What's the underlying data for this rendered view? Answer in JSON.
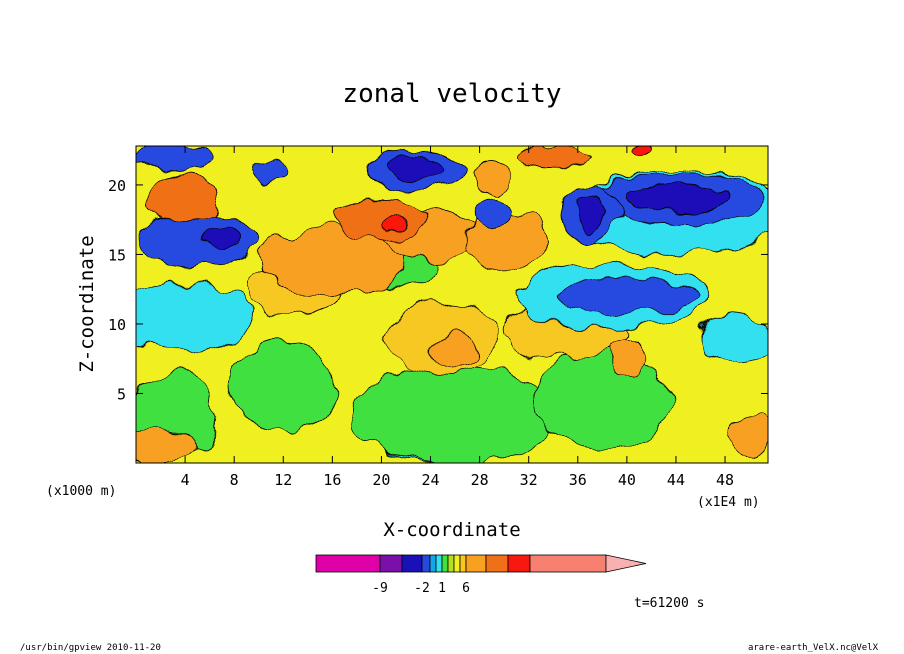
{
  "chart_data": {
    "type": "heatmap",
    "title": "zonal velocity",
    "xlabel": "X-coordinate",
    "ylabel": "Z-coordinate",
    "x_unit_label": "(x1E4 m)",
    "y_unit_label": "(x1000 m)",
    "xlim": [
      0,
      51.5
    ],
    "ylim": [
      0,
      22.8
    ],
    "x_ticks": [
      4,
      8,
      12,
      16,
      20,
      24,
      28,
      32,
      36,
      40,
      44,
      48
    ],
    "y_ticks": [
      5,
      10,
      15,
      20
    ],
    "grid": false,
    "colorbar": {
      "tick_labels": [
        "-9",
        "-2",
        "1",
        "6"
      ],
      "tick_values": [
        -9,
        -2,
        1,
        6
      ],
      "colors": [
        "#e000a8",
        "#7a10a8",
        "#1a10b8",
        "#2848e0",
        "#10a8e8",
        "#30e0f0",
        "#40e040",
        "#b0e020",
        "#f0f020",
        "#f8c820",
        "#f8a020",
        "#f07018",
        "#f81810",
        "#f88070",
        "#f8b0b0"
      ]
    },
    "time_label": "t=61200 s",
    "regions": [
      {
        "level": "cyan",
        "x": 25,
        "z": 1.8,
        "rx": 5.5,
        "rz": 1.8
      },
      {
        "level": "cyan",
        "x": 10,
        "z": 4.8,
        "rx": 2.2,
        "rz": 1.3
      },
      {
        "level": "green",
        "x": 26,
        "z": 3.5,
        "rx": 8.5,
        "rz": 3.5
      },
      {
        "level": "green",
        "x": 12,
        "z": 5.5,
        "rx": 4.5,
        "rz": 3.2
      },
      {
        "level": "green",
        "x": 3,
        "z": 3.5,
        "rx": 3.5,
        "rz": 3.0
      },
      {
        "level": "green",
        "x": 38,
        "z": 4.5,
        "rx": 5.5,
        "rz": 3.5
      },
      {
        "level": "green",
        "x": 22,
        "z": 14.5,
        "rx": 2.5,
        "rz": 1.8
      },
      {
        "level": "gold",
        "x": 25,
        "z": 9,
        "rx": 4.5,
        "rz": 2.5
      },
      {
        "level": "orange",
        "x": 26,
        "z": 8.2,
        "rx": 2.0,
        "rz": 1.2
      },
      {
        "level": "gold",
        "x": 13,
        "z": 12.5,
        "rx": 4,
        "rz": 1.8
      },
      {
        "level": "orange",
        "x": 16,
        "z": 14.5,
        "rx": 6,
        "rz": 2.5
      },
      {
        "level": "orange",
        "x": 24,
        "z": 16.5,
        "rx": 4,
        "rz": 1.8
      },
      {
        "level": "orange",
        "x": 30,
        "z": 16,
        "rx": 3.5,
        "rz": 2
      },
      {
        "level": "gold",
        "x": 35,
        "z": 9.5,
        "rx": 5,
        "rz": 2.2
      },
      {
        "level": "orange",
        "x": 40,
        "z": 7.5,
        "rx": 1.2,
        "rz": 1.4
      },
      {
        "level": "darkorange",
        "x": 4,
        "z": 19,
        "rx": 3,
        "rz": 1.8
      },
      {
        "level": "darkorange",
        "x": 20,
        "z": 17.5,
        "rx": 3.5,
        "rz": 1.5
      },
      {
        "level": "red",
        "x": 21,
        "z": 17,
        "rx": 0.8,
        "rz": 0.5
      },
      {
        "level": "blue",
        "x": 4,
        "z": 10,
        "rx": 3.5,
        "rz": 1.6
      },
      {
        "level": "cyan",
        "x": 4,
        "z": 10.5,
        "rx": 5.5,
        "rz": 2.5
      },
      {
        "level": "blue",
        "x": 5,
        "z": 16,
        "rx": 5,
        "rz": 1.8
      },
      {
        "level": "navy",
        "x": 7,
        "z": 16.2,
        "rx": 1.5,
        "rz": 0.8
      },
      {
        "level": "cyan",
        "x": 39,
        "z": 12,
        "rx": 8,
        "rz": 2.2
      },
      {
        "level": "blue",
        "x": 40,
        "z": 12,
        "rx": 6,
        "rz": 1.2
      },
      {
        "level": "cyan",
        "x": 49,
        "z": 9,
        "rx": 3,
        "rz": 1.8
      },
      {
        "level": "cyan",
        "x": 44,
        "z": 18,
        "rx": 9,
        "rz": 3
      },
      {
        "level": "blue",
        "x": 44,
        "z": 19,
        "rx": 7,
        "rz": 1.8
      },
      {
        "level": "navy",
        "x": 44,
        "z": 19,
        "rx": 4,
        "rz": 0.9
      },
      {
        "level": "blue",
        "x": 37,
        "z": 18,
        "rx": 2.5,
        "rz": 2
      },
      {
        "level": "navy",
        "x": 37,
        "z": 18,
        "rx": 1.3,
        "rz": 1.2
      },
      {
        "level": "blue",
        "x": 23,
        "z": 21,
        "rx": 4,
        "rz": 1.5
      },
      {
        "level": "navy",
        "x": 23,
        "z": 21.2,
        "rx": 2.5,
        "rz": 0.9
      },
      {
        "level": "blue",
        "x": 3,
        "z": 22,
        "rx": 3,
        "rz": 1
      },
      {
        "level": "blue",
        "x": 11,
        "z": 21,
        "rx": 1.5,
        "rz": 1
      },
      {
        "level": "blue",
        "x": 29,
        "z": 18,
        "rx": 1.2,
        "rz": 1
      },
      {
        "level": "orange",
        "x": 29,
        "z": 20.5,
        "rx": 1.5,
        "rz": 1.2
      },
      {
        "level": "darkorange",
        "x": 34,
        "z": 22,
        "rx": 3,
        "rz": 0.8
      },
      {
        "level": "red",
        "x": 41,
        "z": 22.5,
        "rx": 1,
        "rz": 0.4
      },
      {
        "level": "orange",
        "x": 2,
        "z": 1.2,
        "rx": 3,
        "rz": 1.2
      },
      {
        "level": "orange",
        "x": 50,
        "z": 2,
        "rx": 1.5,
        "rz": 1.5
      }
    ]
  },
  "footer": {
    "program": "/usr/bin/gpview  2010-11-20",
    "file": "arare-earth_VelX.nc@VelX"
  }
}
